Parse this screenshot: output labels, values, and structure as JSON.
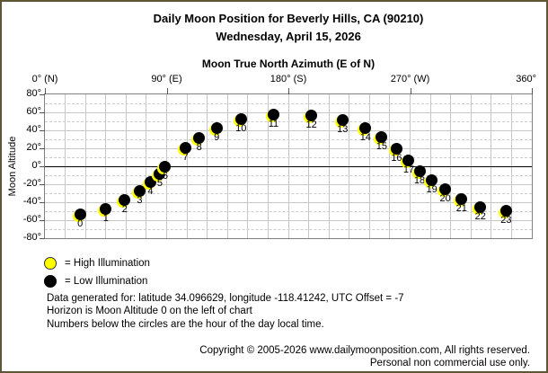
{
  "header": {
    "title": "Daily Moon Position for Beverly Hills, CA (90210)",
    "subtitle": "Wednesday, April 15, 2026"
  },
  "chart_data": {
    "type": "scatter",
    "title": "Moon True North Azimuth (E of N)",
    "xlabel": "Moon True North Azimuth (E of N)",
    "ylabel": "Moon Altitude",
    "xlim": [
      0,
      360
    ],
    "ylim": [
      -80,
      80
    ],
    "grid": true,
    "x_ticks": [
      {
        "value": 0,
        "label": "0° (N)"
      },
      {
        "value": 90,
        "label": "90° (E)"
      },
      {
        "value": 180,
        "label": "180° (S)"
      },
      {
        "value": 270,
        "label": "270° (W)"
      },
      {
        "value": 360,
        "label": "360°"
      }
    ],
    "y_ticks": [
      80,
      60,
      40,
      20,
      0,
      -20,
      -40,
      -60,
      -80
    ],
    "colors": {
      "high_illumination": "#ffff00",
      "low_illumination": "#000000",
      "grid": "#c6c6c6",
      "zero_line": "#000000"
    },
    "points": [
      {
        "hour": 0,
        "azimuth": 26,
        "altitude": -53,
        "illumination": "low"
      },
      {
        "hour": 1,
        "azimuth": 45,
        "altitude": -47,
        "illumination": "low"
      },
      {
        "hour": 2,
        "azimuth": 59,
        "altitude": -37,
        "illumination": "low"
      },
      {
        "hour": 3,
        "azimuth": 70,
        "altitude": -27,
        "illumination": "low"
      },
      {
        "hour": 4,
        "azimuth": 78,
        "altitude": -17,
        "illumination": "low"
      },
      {
        "hour": 5,
        "azimuth": 85,
        "altitude": -8,
        "illumination": "low"
      },
      {
        "hour": 6,
        "azimuth": 89,
        "altitude": 0,
        "illumination": "low"
      },
      {
        "hour": 7,
        "azimuth": 104,
        "altitude": 21,
        "illumination": "low"
      },
      {
        "hour": 8,
        "azimuth": 114,
        "altitude": 32,
        "illumination": "low"
      },
      {
        "hour": 9,
        "azimuth": 127,
        "altitude": 43,
        "illumination": "low"
      },
      {
        "hour": 10,
        "azimuth": 145,
        "altitude": 53,
        "illumination": "low"
      },
      {
        "hour": 11,
        "azimuth": 169,
        "altitude": 58,
        "illumination": "low"
      },
      {
        "hour": 12,
        "azimuth": 197,
        "altitude": 57,
        "illumination": "low"
      },
      {
        "hour": 13,
        "azimuth": 220,
        "altitude": 52,
        "illumination": "low"
      },
      {
        "hour": 14,
        "azimuth": 237,
        "altitude": 43,
        "illumination": "low"
      },
      {
        "hour": 15,
        "azimuth": 249,
        "altitude": 33,
        "illumination": "low"
      },
      {
        "hour": 16,
        "azimuth": 260,
        "altitude": 20,
        "illumination": "low"
      },
      {
        "hour": 17,
        "azimuth": 269,
        "altitude": 7,
        "illumination": "low"
      },
      {
        "hour": 18,
        "azimuth": 277,
        "altitude": -5,
        "illumination": "low"
      },
      {
        "hour": 19,
        "azimuth": 286,
        "altitude": -15,
        "illumination": "low"
      },
      {
        "hour": 20,
        "azimuth": 296,
        "altitude": -25,
        "illumination": "low"
      },
      {
        "hour": 21,
        "azimuth": 308,
        "altitude": -36,
        "illumination": "low"
      },
      {
        "hour": 22,
        "azimuth": 322,
        "altitude": -45,
        "illumination": "low"
      },
      {
        "hour": 23,
        "azimuth": 341,
        "altitude": -49,
        "illumination": "low"
      }
    ]
  },
  "legend": {
    "items": [
      {
        "key": "high",
        "swatch_color": "#ffff00",
        "label": "= High Illumination"
      },
      {
        "key": "low",
        "swatch_color": "#000000",
        "label": "= Low Illumination"
      }
    ]
  },
  "notes": {
    "line1": "Data generated for: latitude 34.096629, longitude -118.41242, UTC Offset = -7",
    "line2": "Horizon is Moon Altitude 0 on the left of chart",
    "line3": "Numbers below the circles are the hour of the day local time."
  },
  "footer": {
    "line1": "Copyright © 2005-2026 www.dailymoonposition.com, All rights reserved.",
    "line2": "Personal non commercial use only."
  }
}
